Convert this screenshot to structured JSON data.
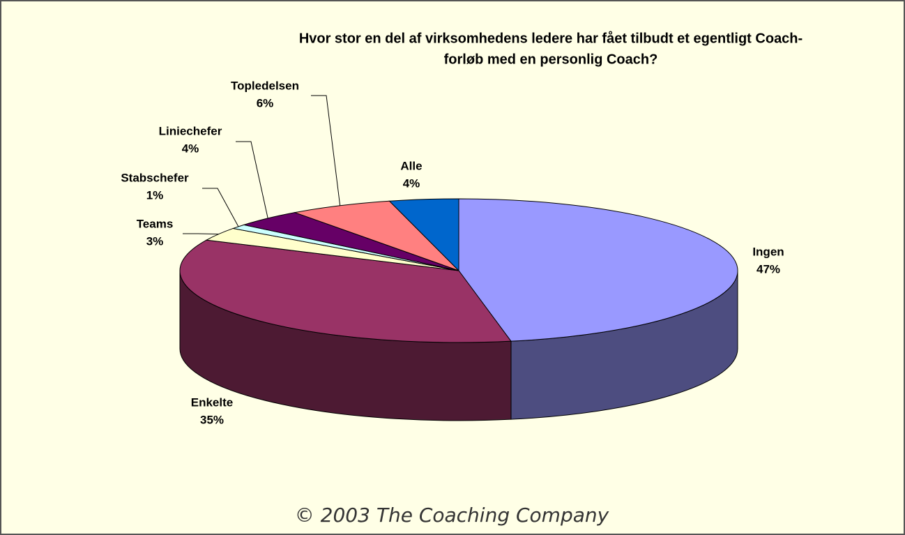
{
  "chart_data": {
    "type": "pie3d",
    "title": [
      "Hvor stor en del af virksomhedens ledere har fået tilbudt et egentligt Coach-",
      "forløb med en personlig Coach?"
    ],
    "categories": [
      "Ingen",
      "Enkelte",
      "Teams",
      "Stabschefer",
      "Liniechefer",
      "Topledelsen",
      "Alle"
    ],
    "values": [
      47,
      35,
      3,
      1,
      4,
      6,
      4
    ],
    "value_labels": [
      "47%",
      "35%",
      "3%",
      "1%",
      "4%",
      "6%",
      "4%"
    ],
    "colors": [
      "#9999ff",
      "#993366",
      "#ffffcc",
      "#ccffff",
      "#660066",
      "#ff8080",
      "#0066cc"
    ],
    "footer": "© 2003 The Coaching Company"
  }
}
